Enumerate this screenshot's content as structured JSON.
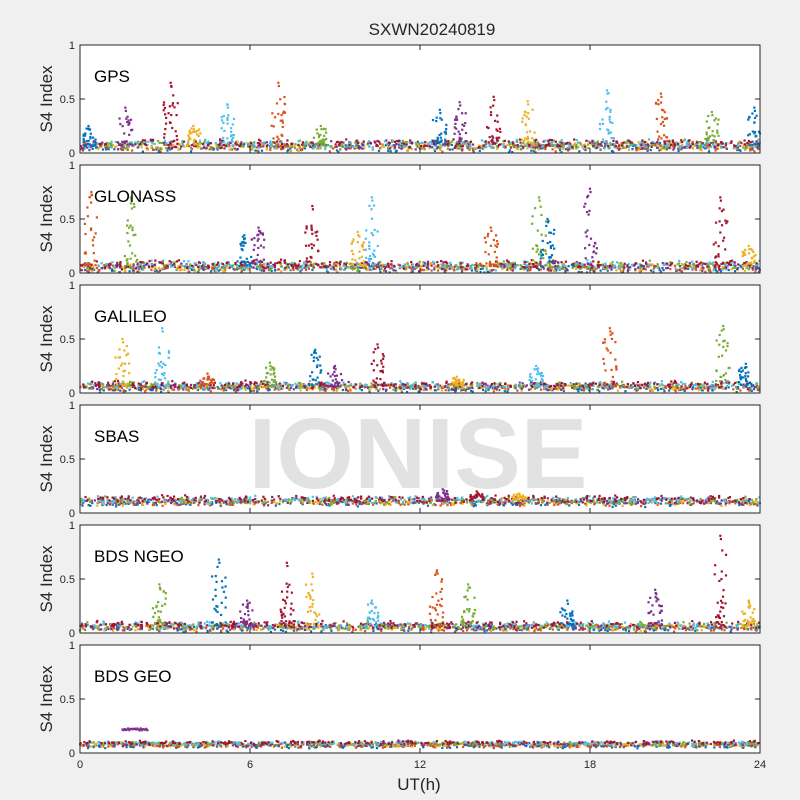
{
  "figure": {
    "title": "SXWN20240819",
    "xlabel": "UT(h)",
    "ylabel": "S4 Index",
    "watermark": "IONISE"
  },
  "chart_data": [
    {
      "type": "scatter",
      "label": "GPS",
      "xlim": [
        0,
        24
      ],
      "ylim": [
        0,
        1
      ],
      "x_ticks": [
        0,
        6,
        12,
        18,
        24
      ],
      "y_ticks": [
        0,
        0.5,
        1
      ],
      "y_tick_labels": [
        "0",
        "0.5",
        "1"
      ],
      "baseline": 0.07,
      "noise": 0.05,
      "peaks": [
        [
          0.3,
          0.25
        ],
        [
          1.6,
          0.42
        ],
        [
          3.2,
          0.65
        ],
        [
          4.0,
          0.25
        ],
        [
          5.2,
          0.45
        ],
        [
          7.0,
          0.65
        ],
        [
          8.5,
          0.25
        ],
        [
          12.7,
          0.4
        ],
        [
          13.4,
          0.47
        ],
        [
          14.6,
          0.52
        ],
        [
          15.8,
          0.48
        ],
        [
          18.6,
          0.58
        ],
        [
          20.5,
          0.55
        ],
        [
          22.3,
          0.38
        ],
        [
          23.8,
          0.42
        ]
      ]
    },
    {
      "type": "scatter",
      "label": "GLONASS",
      "xlim": [
        0,
        24
      ],
      "ylim": [
        0,
        1
      ],
      "x_ticks": [
        0,
        6,
        12,
        18,
        24
      ],
      "y_ticks": [
        0,
        0.5,
        1
      ],
      "y_tick_labels": [
        "0",
        "0.5",
        "1"
      ],
      "baseline": 0.06,
      "noise": 0.05,
      "peaks": [
        [
          0.4,
          0.75
        ],
        [
          1.8,
          0.7
        ],
        [
          5.8,
          0.35
        ],
        [
          6.3,
          0.42
        ],
        [
          8.2,
          0.62
        ],
        [
          9.8,
          0.38
        ],
        [
          10.3,
          0.7
        ],
        [
          14.5,
          0.42
        ],
        [
          16.2,
          0.7
        ],
        [
          16.5,
          0.5
        ],
        [
          18.0,
          0.78
        ],
        [
          22.6,
          0.7
        ],
        [
          23.6,
          0.25
        ]
      ]
    },
    {
      "type": "scatter",
      "label": "GALILEO",
      "xlim": [
        0,
        24
      ],
      "ylim": [
        0,
        1
      ],
      "x_ticks": [
        0,
        6,
        12,
        18,
        24
      ],
      "y_ticks": [
        0,
        0.5,
        1
      ],
      "y_tick_labels": [
        "0",
        "0.5",
        "1"
      ],
      "baseline": 0.06,
      "noise": 0.04,
      "peaks": [
        [
          1.5,
          0.5
        ],
        [
          2.9,
          0.6
        ],
        [
          4.5,
          0.18
        ],
        [
          6.7,
          0.28
        ],
        [
          8.3,
          0.4
        ],
        [
          9.0,
          0.25
        ],
        [
          10.5,
          0.45
        ],
        [
          13.3,
          0.15
        ],
        [
          16.1,
          0.25
        ],
        [
          18.7,
          0.6
        ],
        [
          22.7,
          0.62
        ],
        [
          23.5,
          0.27
        ]
      ]
    },
    {
      "type": "scatter",
      "label": "SBAS",
      "xlim": [
        0,
        24
      ],
      "ylim": [
        0,
        1
      ],
      "x_ticks": [
        0,
        6,
        12,
        18,
        24
      ],
      "y_ticks": [
        0,
        0.5,
        1
      ],
      "y_tick_labels": [
        "0",
        "0.5",
        "1"
      ],
      "baseline": 0.11,
      "noise": 0.04,
      "peaks": [
        [
          12.8,
          0.22
        ],
        [
          14.0,
          0.2
        ],
        [
          15.5,
          0.18
        ]
      ]
    },
    {
      "type": "scatter",
      "label": "BDS NGEO",
      "xlim": [
        0,
        24
      ],
      "ylim": [
        0,
        1
      ],
      "x_ticks": [
        0,
        6,
        12,
        18,
        24
      ],
      "y_ticks": [
        0,
        0.5,
        1
      ],
      "y_tick_labels": [
        "0",
        "0.5",
        "1"
      ],
      "baseline": 0.06,
      "noise": 0.04,
      "peaks": [
        [
          2.8,
          0.45
        ],
        [
          4.9,
          0.68
        ],
        [
          5.9,
          0.3
        ],
        [
          7.3,
          0.65
        ],
        [
          8.2,
          0.55
        ],
        [
          10.3,
          0.3
        ],
        [
          12.6,
          0.58
        ],
        [
          13.7,
          0.45
        ],
        [
          17.2,
          0.3
        ],
        [
          20.3,
          0.4
        ],
        [
          22.6,
          0.9
        ],
        [
          23.6,
          0.3
        ]
      ]
    },
    {
      "type": "scatter",
      "label": "BDS GEO",
      "xlim": [
        0,
        24
      ],
      "ylim": [
        0,
        1
      ],
      "x_ticks": [
        0,
        6,
        12,
        18,
        24
      ],
      "y_ticks": [
        0,
        0.5,
        1
      ],
      "y_tick_labels": [
        "0",
        "0.5",
        "1"
      ],
      "baseline": 0.08,
      "noise": 0.02,
      "peaks": [],
      "segments": [
        {
          "x0": 1.5,
          "x1": 2.4,
          "y": 0.22
        }
      ]
    }
  ],
  "colors": [
    "#0072bd",
    "#d95319",
    "#edb120",
    "#7e2f8e",
    "#77ac30",
    "#4dbeee",
    "#a2142f"
  ]
}
